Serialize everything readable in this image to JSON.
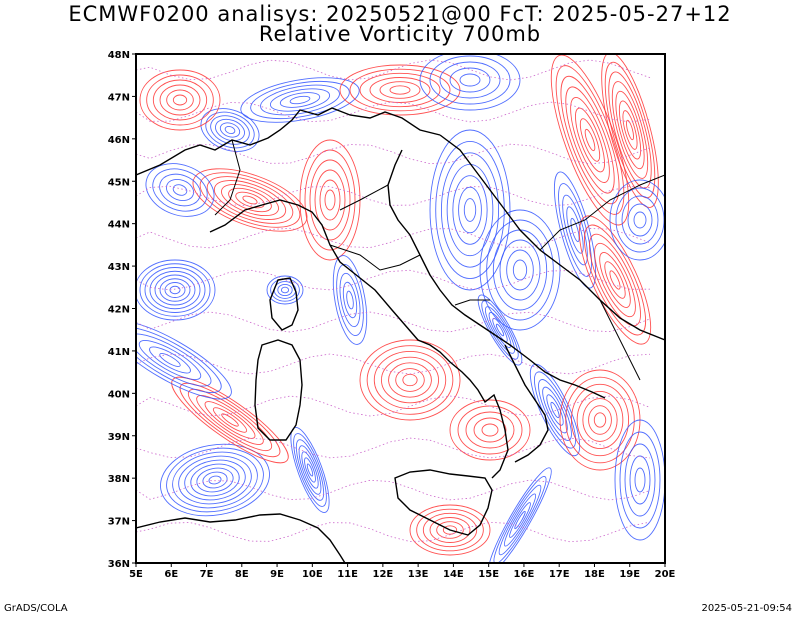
{
  "title": {
    "line1": "ECMWF0200 analisys: 20250521@00 FcT: 2025-05-27+12",
    "line2": "Relative Vorticity 700mb"
  },
  "footer": {
    "left": "GrADS/COLA",
    "right": "2025-05-21-09:54"
  },
  "map": {
    "lon_range": [
      5,
      20
    ],
    "lat_range": [
      36,
      48
    ],
    "x_ticks": [
      "5E",
      "6E",
      "7E",
      "8E",
      "9E",
      "10E",
      "11E",
      "12E",
      "13E",
      "14E",
      "15E",
      "16E",
      "17E",
      "18E",
      "19E",
      "20E"
    ],
    "y_ticks": [
      "36N",
      "37N",
      "38N",
      "39N",
      "40N",
      "41N",
      "42N",
      "43N",
      "44N",
      "45N",
      "46N",
      "47N",
      "48N"
    ],
    "colors": {
      "positive": "#ff3333",
      "negative": "#3355ff",
      "zero": "#cc66cc",
      "coast": "#000000"
    }
  }
}
